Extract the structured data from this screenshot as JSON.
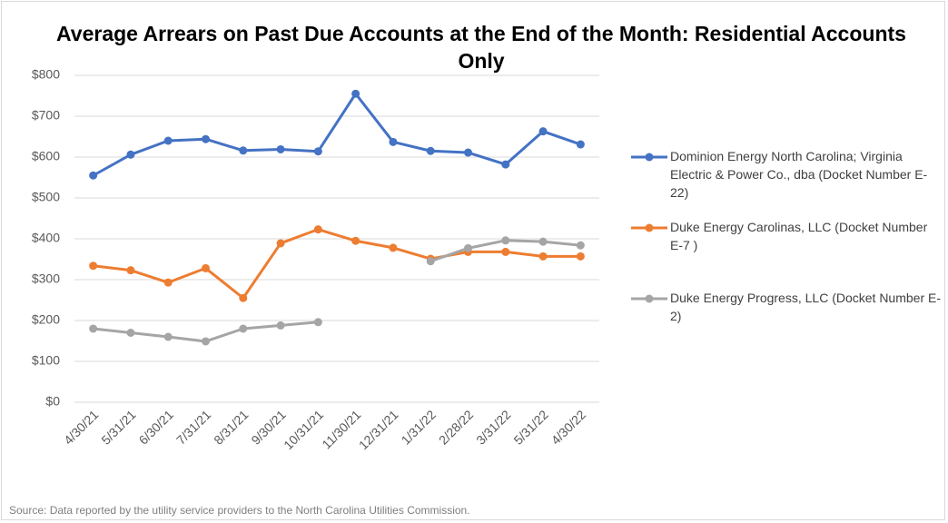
{
  "chart_data": {
    "type": "line",
    "title": "Average Arrears on Past Due Accounts at the End of the Month: Residential Accounts Only",
    "categories": [
      "4/30/21",
      "5/31/21",
      "6/30/21",
      "7/31/21",
      "8/31/21",
      "9/30/21",
      "10/31/21",
      "11/30/21",
      "12/31/21",
      "1/31/22",
      "2/28/22",
      "3/31/22",
      "5/31/22",
      "4/30/22"
    ],
    "series": [
      {
        "name": "Dominion Energy North Carolina; Virginia Electric & Power Co., dba (Docket Number E-22)",
        "color": "#4472c4",
        "values": [
          555,
          606,
          640,
          644,
          616,
          619,
          614,
          755,
          637,
          615,
          611,
          582,
          663,
          631
        ]
      },
      {
        "name": "Duke Energy Carolinas, LLC (Docket Number E-7 )",
        "color": "#ed7d31",
        "values": [
          334,
          323,
          293,
          328,
          255,
          389,
          423,
          395,
          378,
          351,
          368,
          368,
          357,
          357
        ]
      },
      {
        "name": "Duke Energy Progress, LLC (Docket Number E-2)",
        "color": "#a5a5a5",
        "values": [
          180,
          170,
          160,
          149,
          180,
          188,
          196,
          null,
          null,
          345,
          377,
          396,
          393,
          384
        ]
      }
    ],
    "ylim": [
      0,
      800
    ],
    "yticks": [
      {
        "value": 0,
        "label": "$0"
      },
      {
        "value": 100,
        "label": "$100"
      },
      {
        "value": 200,
        "label": "$200"
      },
      {
        "value": 300,
        "label": "$300"
      },
      {
        "value": 400,
        "label": "$400"
      },
      {
        "value": 500,
        "label": "$500"
      },
      {
        "value": 600,
        "label": "$600"
      },
      {
        "value": 700,
        "label": "$700"
      },
      {
        "value": 800,
        "label": "$800"
      }
    ],
    "grid": true,
    "legend": "right",
    "source": "Source: Data reported by the utility service providers to the North Carolina Utilities Commission."
  }
}
